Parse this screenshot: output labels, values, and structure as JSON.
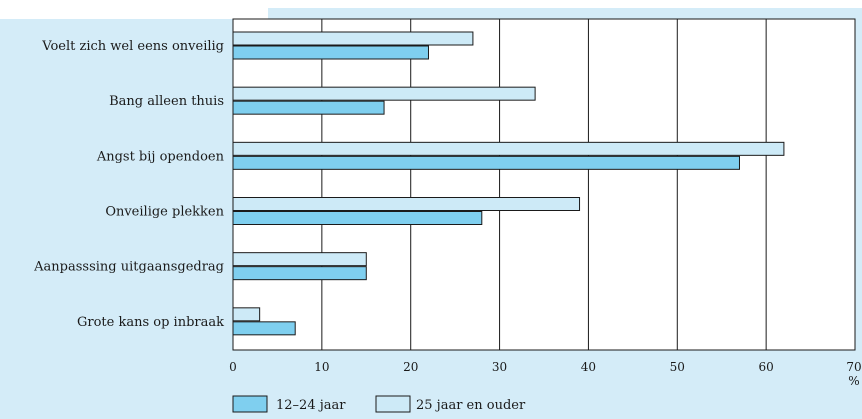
{
  "colors": {
    "background_panel": "#d4ecf8",
    "bar_series_1": "#7fcfef",
    "bar_series_2": "#cdeaf7",
    "bar_stroke": "#1a1a1a",
    "plot_background": "#ffffff",
    "grid": "#1a1a1a"
  },
  "chart_data": {
    "type": "bar",
    "orientation": "horizontal",
    "categories": [
      "Voelt zich wel eens onveilig",
      "Bang alleen thuis",
      "Angst bij opendoen",
      "Onveilige plekken",
      "Aanpasssing uitgaansgedrag",
      "Grote kans op inbraak"
    ],
    "series": [
      {
        "name": "12–24 jaar",
        "color": "#7fcfef",
        "values": [
          22,
          17,
          57,
          28,
          15,
          7
        ]
      },
      {
        "name": "25 jaar en ouder",
        "color": "#cdeaf7",
        "values": [
          27,
          34,
          62,
          39,
          15,
          3
        ]
      }
    ],
    "x_ticks": [
      "0",
      "10",
      "20",
      "30",
      "40",
      "50",
      "60",
      "70"
    ],
    "x_unit": "%",
    "xlim": [
      0,
      70
    ],
    "grid": true,
    "legend_placement": "bottom-left",
    "title": "",
    "xlabel": "",
    "ylabel": ""
  }
}
